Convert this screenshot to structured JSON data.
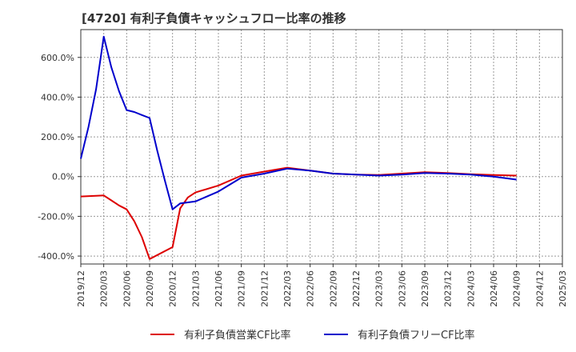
{
  "chart_data": {
    "type": "line",
    "title": "[4720]  有利子負債キャッシュフロー比率の推移",
    "xlabel": "",
    "ylabel": "",
    "x_ticks": [
      "2019/12",
      "2020/03",
      "2020/06",
      "2020/09",
      "2020/12",
      "2021/03",
      "2021/06",
      "2021/09",
      "2021/12",
      "2022/03",
      "2022/06",
      "2022/09",
      "2022/12",
      "2023/03",
      "2023/06",
      "2023/09",
      "2023/12",
      "2024/03",
      "2024/06",
      "2024/09",
      "2024/12",
      "2025/03"
    ],
    "y_ticks": [
      "600.0%",
      "400.0%",
      "200.0%",
      "0.0%",
      "-200.0%",
      "-400.0%"
    ],
    "y_tick_values": [
      600,
      400,
      200,
      0,
      -200,
      -400
    ],
    "ylim": [
      -440,
      740
    ],
    "xlim_months": [
      0,
      63
    ],
    "grid": true,
    "legend_position": "bottom",
    "series": [
      {
        "name": "有利子負債営業CF比率",
        "color": "#dd0000",
        "points": [
          [
            "2019/12",
            -100
          ],
          [
            "2020/03",
            -95
          ],
          [
            "2020/04",
            -120
          ],
          [
            "2020/05",
            -145
          ],
          [
            "2020/06",
            -165
          ],
          [
            "2020/07",
            -225
          ],
          [
            "2020/08",
            -305
          ],
          [
            "2020/09",
            -415
          ],
          [
            "2020/12",
            -355
          ],
          [
            "2021/01",
            -160
          ],
          [
            "2021/02",
            -105
          ],
          [
            "2021/03",
            -80
          ],
          [
            "2021/06",
            -45
          ],
          [
            "2021/09",
            5
          ],
          [
            "2021/12",
            25
          ],
          [
            "2022/03",
            45
          ],
          [
            "2022/06",
            30
          ],
          [
            "2022/09",
            15
          ],
          [
            "2022/12",
            10
          ],
          [
            "2023/03",
            8
          ],
          [
            "2023/06",
            15
          ],
          [
            "2023/09",
            22
          ],
          [
            "2023/12",
            18
          ],
          [
            "2024/03",
            12
          ],
          [
            "2024/06",
            8
          ],
          [
            "2024/09",
            5
          ]
        ]
      },
      {
        "name": "有利子負債フリーCF比率",
        "color": "#0000cc",
        "points": [
          [
            "2019/12",
            90
          ],
          [
            "2020/01",
            250
          ],
          [
            "2020/02",
            440
          ],
          [
            "2020/03",
            705
          ],
          [
            "2020/04",
            550
          ],
          [
            "2020/05",
            430
          ],
          [
            "2020/06",
            335
          ],
          [
            "2020/07",
            325
          ],
          [
            "2020/08",
            310
          ],
          [
            "2020/09",
            295
          ],
          [
            "2020/10",
            130
          ],
          [
            "2020/11",
            -20
          ],
          [
            "2020/12",
            -165
          ],
          [
            "2021/01",
            -135
          ],
          [
            "2021/03",
            -125
          ],
          [
            "2021/06",
            -75
          ],
          [
            "2021/09",
            -5
          ],
          [
            "2021/12",
            15
          ],
          [
            "2022/03",
            40
          ],
          [
            "2022/06",
            30
          ],
          [
            "2022/09",
            15
          ],
          [
            "2022/12",
            10
          ],
          [
            "2023/03",
            5
          ],
          [
            "2023/06",
            10
          ],
          [
            "2023/09",
            18
          ],
          [
            "2023/12",
            15
          ],
          [
            "2024/03",
            10
          ],
          [
            "2024/06",
            0
          ],
          [
            "2024/09",
            -15
          ]
        ]
      }
    ]
  }
}
